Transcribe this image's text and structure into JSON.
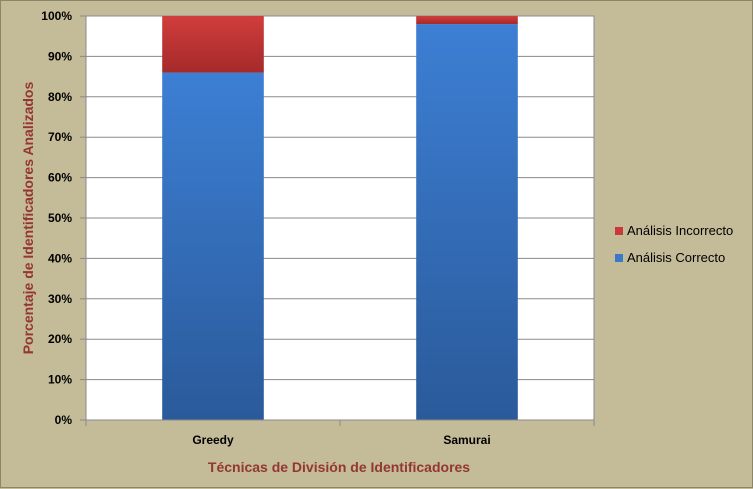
{
  "chart_data": {
    "type": "bar",
    "stacked": true,
    "percent_stacked": true,
    "categories": [
      "Greedy",
      "Samurai"
    ],
    "series": [
      {
        "name": "Análisis Correcto",
        "values": [
          86,
          98
        ],
        "color": "#3a78c9"
      },
      {
        "name": "Análisis Incorrecto",
        "values": [
          14,
          2
        ],
        "color": "#c9383a"
      }
    ],
    "y_ticks": [
      "0%",
      "10%",
      "20%",
      "30%",
      "40%",
      "50%",
      "60%",
      "70%",
      "80%",
      "90%",
      "100%"
    ],
    "ylim": [
      0,
      100
    ],
    "xlabel": "Técnicas de División de Identificadores",
    "ylabel": "Porcentaje de Identificadores Analizados",
    "legend_position": "right",
    "grid": true
  }
}
